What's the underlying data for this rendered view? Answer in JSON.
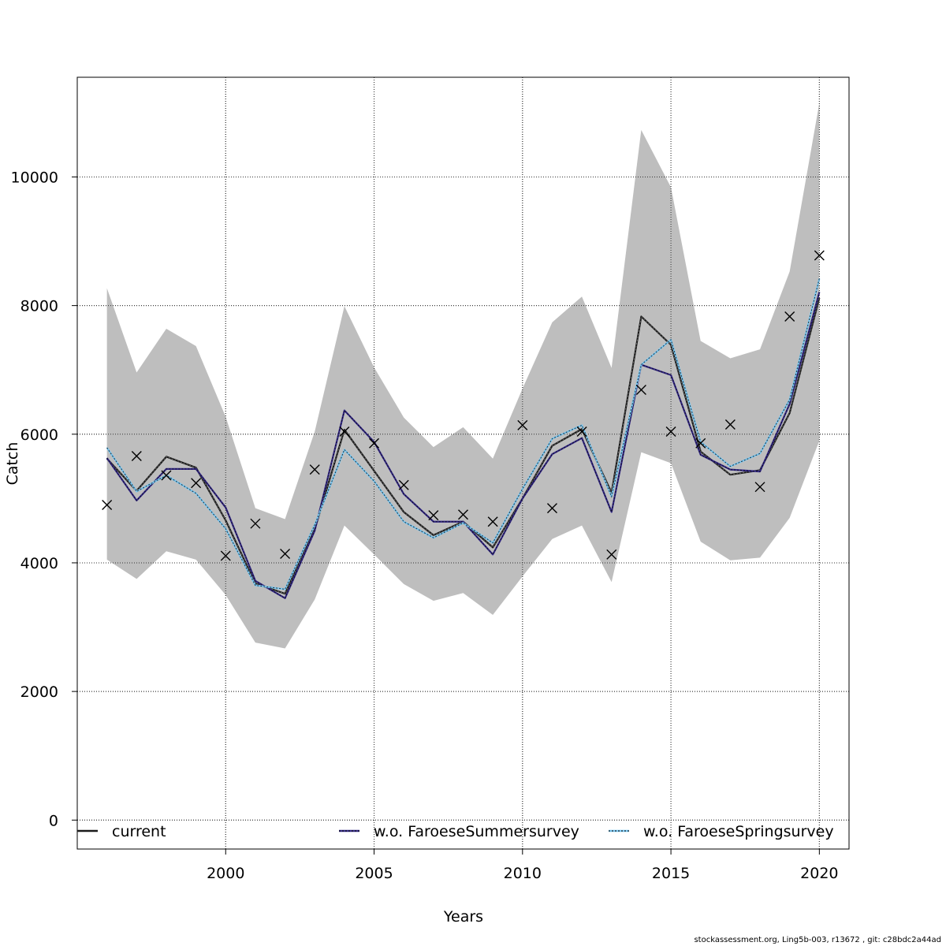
{
  "chart_data": {
    "type": "line",
    "xlabel": "Years",
    "ylabel": "Catch",
    "xlim": [
      1995,
      2021
    ],
    "ylim": [
      -450,
      11550
    ],
    "xticks": [
      2000,
      2005,
      2010,
      2015,
      2020
    ],
    "yticks": [
      0,
      2000,
      4000,
      6000,
      8000,
      10000
    ],
    "grid": true,
    "legend_placement": "bottom",
    "x": [
      1996,
      1997,
      1998,
      1999,
      2000,
      2001,
      2002,
      2003,
      2004,
      2005,
      2006,
      2007,
      2008,
      2009,
      2010,
      2011,
      2012,
      2013,
      2014,
      2015,
      2016,
      2017,
      2018,
      2019,
      2020
    ],
    "band": {
      "color": "#bebebe",
      "lower": [
        4050,
        3750,
        4180,
        4050,
        3500,
        2760,
        2670,
        3430,
        4580,
        4130,
        3670,
        3410,
        3530,
        3190,
        3790,
        4370,
        4580,
        3700,
        5720,
        5550,
        4330,
        4040,
        4080,
        4700,
        5900
      ],
      "upper": [
        8270,
        6960,
        7640,
        7370,
        6270,
        4850,
        4680,
        6040,
        7990,
        7040,
        6260,
        5800,
        6110,
        5620,
        6710,
        7740,
        8140,
        7030,
        10730,
        9840,
        7450,
        7180,
        7320,
        8530,
        11150
      ]
    },
    "series": [
      {
        "name": "current",
        "color": "#1a1a1a",
        "dashed_overlay": false,
        "values": [
          5620,
          5120,
          5650,
          5480,
          4660,
          3680,
          3520,
          4520,
          6070,
          5430,
          4790,
          4430,
          4640,
          4240,
          5000,
          5820,
          6080,
          5090,
          7830,
          7390,
          5730,
          5370,
          5440,
          6330,
          8120
        ]
      },
      {
        "name": "w.o. FaroeseSummersurvey",
        "color": "#352a87",
        "dashed_overlay": true,
        "values": [
          5630,
          4970,
          5460,
          5460,
          4860,
          3720,
          3450,
          4500,
          6370,
          5880,
          5070,
          4640,
          4640,
          4130,
          5000,
          5690,
          5940,
          4790,
          7080,
          6920,
          5680,
          5450,
          5420,
          6470,
          8210
        ]
      },
      {
        "name": "w.o. FaroeseSpringsurvey",
        "color": "#79c7f2",
        "dashed_overlay": true,
        "values": [
          5790,
          5110,
          5360,
          5080,
          4530,
          3650,
          3590,
          4590,
          5760,
          5270,
          4640,
          4390,
          4620,
          4310,
          5150,
          5930,
          6140,
          5030,
          7080,
          7470,
          5880,
          5500,
          5700,
          6540,
          8420
        ]
      }
    ],
    "observations": {
      "marker": "x",
      "values": [
        4900,
        5660,
        5360,
        5240,
        4110,
        4610,
        4140,
        5450,
        6040,
        5860,
        5210,
        4740,
        4750,
        4640,
        6140,
        4850,
        6040,
        4130,
        6690,
        6040,
        5860,
        6150,
        5180,
        7830,
        8780
      ]
    },
    "footer": "stockassessment.org, Ling5b-003, r13672 , git: c28bdc2a44ad"
  }
}
